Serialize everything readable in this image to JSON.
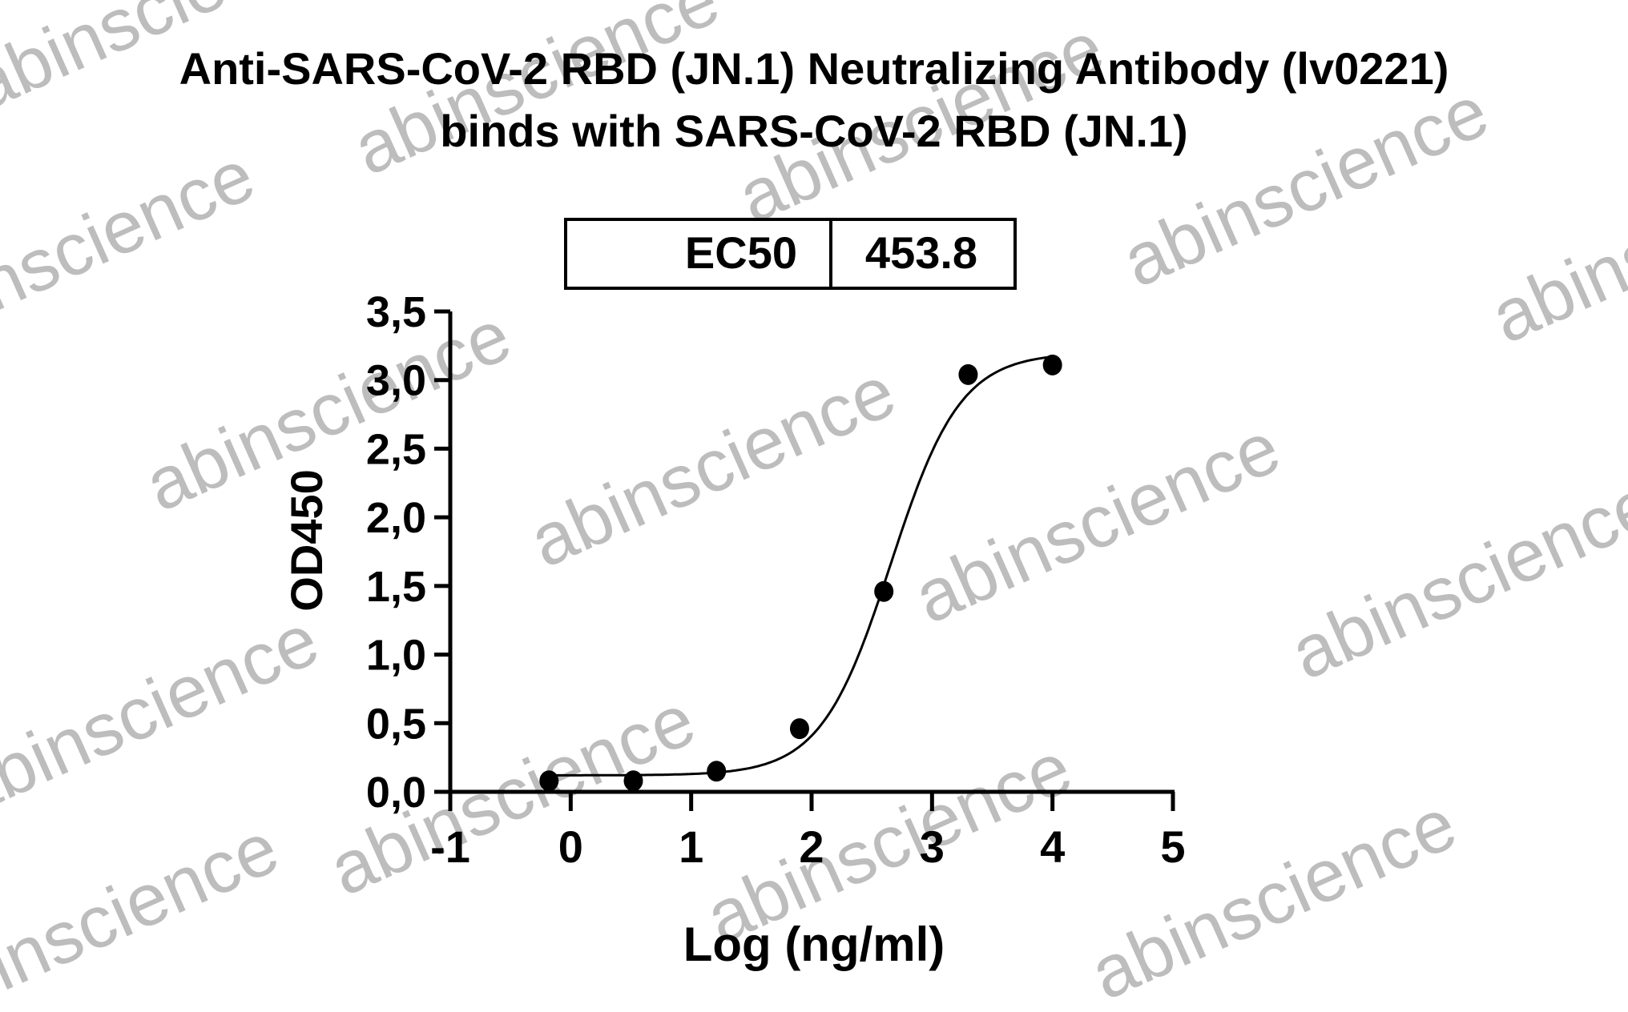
{
  "watermark": "abinscience",
  "chart_data": {
    "type": "scatter",
    "title": [
      "Anti-SARS-CoV-2 RBD (JN.1) Neutralizing Antibody (lv0221)",
      "binds with SARS-CoV-2 RBD (JN.1)"
    ],
    "xlabel": "Log (ng/ml)",
    "ylabel": "OD450",
    "xlim": [
      -1,
      5
    ],
    "ylim": [
      0,
      3.5
    ],
    "xticks": [
      "-1",
      "0",
      "1",
      "2",
      "3",
      "4",
      "5"
    ],
    "yticks": [
      "0,0",
      "0,5",
      "1,0",
      "1,5",
      "2,0",
      "2,5",
      "3,0",
      "3,5"
    ],
    "grid": false,
    "points": {
      "x": [
        -0.18,
        0.52,
        1.21,
        1.9,
        2.6,
        3.3,
        4.0
      ],
      "y": [
        0.08,
        0.08,
        0.15,
        0.46,
        1.46,
        3.04,
        3.11
      ]
    },
    "fit": {
      "model": "4PL",
      "bottom": 0.12,
      "top": 3.2,
      "logEC50": 2.657,
      "hill": 1.5,
      "xrange": [
        -0.18,
        4.0
      ]
    },
    "table": {
      "label": "EC50",
      "value": "453.8"
    },
    "colors": {
      "marks": "#000000",
      "watermark": "#bdbdbd"
    }
  }
}
